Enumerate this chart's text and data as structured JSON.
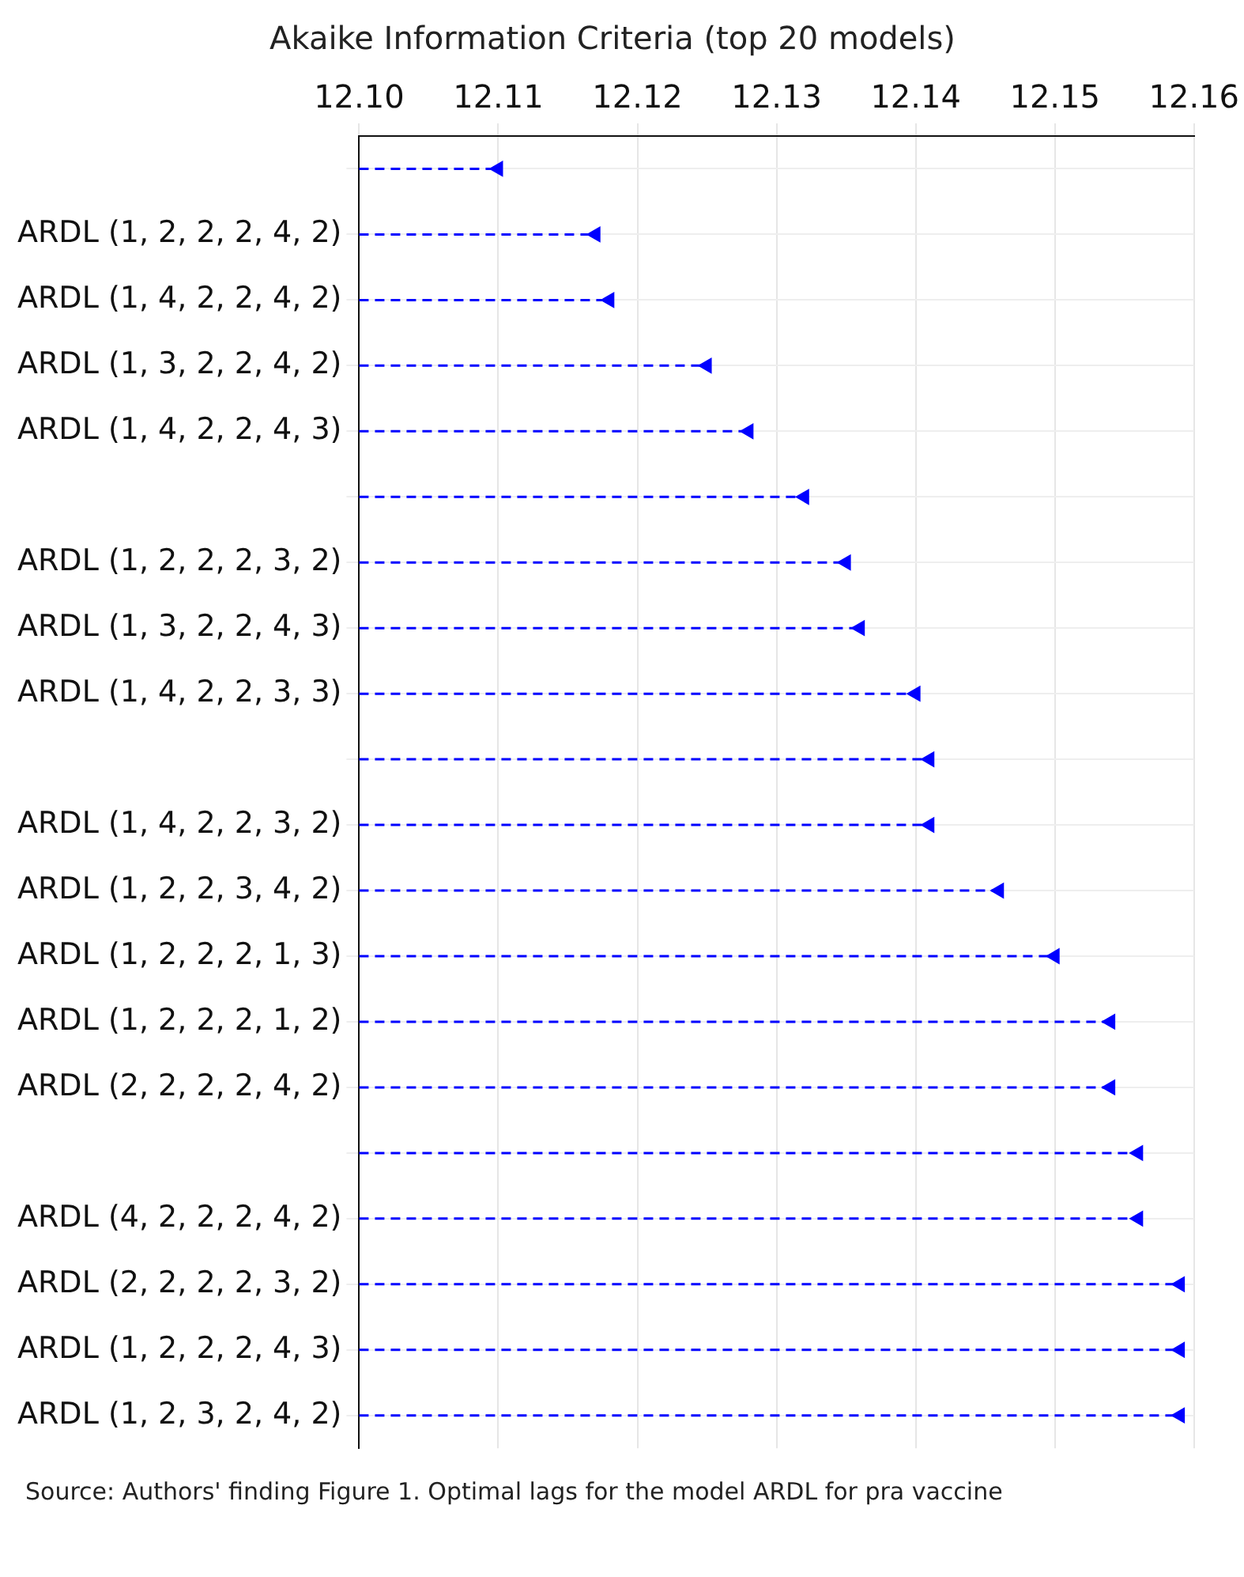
{
  "chart_data": {
    "type": "lollipop",
    "orientation": "horizontal",
    "title": "Akaike Information Criteria (top 20 models)",
    "categories": [
      null,
      "ARDL (1, 2, 2, 2, 4, 2)",
      "ARDL (1, 4, 2, 2, 4, 2)",
      "ARDL (1, 3, 2, 2, 4, 2)",
      "ARDL (1, 4, 2, 2, 4, 3)",
      null,
      "ARDL (1, 2, 2, 2, 3, 2)",
      "ARDL (1, 3, 2, 2, 4, 3)",
      "ARDL (1, 4, 2, 2, 3, 3)",
      null,
      "ARDL (1, 4, 2, 2, 3, 2)",
      "ARDL (1, 2, 2, 3, 4, 2)",
      "ARDL (1, 2, 2, 2, 1, 3)",
      "ARDL (1, 2, 2, 2, 1, 2)",
      "ARDL (2, 2, 2, 2, 4, 2)",
      null,
      "ARDL (4, 2, 2, 2, 4, 2)",
      "ARDL (2, 2, 2, 2, 3, 2)",
      "ARDL (1, 2, 2, 2, 4, 3)",
      "ARDL (1, 2, 3, 2, 4, 2)"
    ],
    "values": [
      12.11,
      12.117,
      12.118,
      12.125,
      12.128,
      12.132,
      12.135,
      12.136,
      12.14,
      12.141,
      12.141,
      12.146,
      12.15,
      12.154,
      12.154,
      12.156,
      12.156,
      12.159,
      12.159,
      12.159
    ],
    "color": "#0000ff",
    "marker": "triangle",
    "line_style": "dashed",
    "xlim": [
      12.1,
      12.16
    ],
    "xticks": [
      {
        "value": 12.1,
        "label": "12.10"
      },
      12.11,
      12.12,
      12.13,
      12.14,
      12.15,
      12.16
    ],
    "grid": true,
    "legend": false,
    "annotations": [
      "Source: Authors' finding Figure 1. Optimal lags for the model ARDL for pra vaccine"
    ]
  }
}
